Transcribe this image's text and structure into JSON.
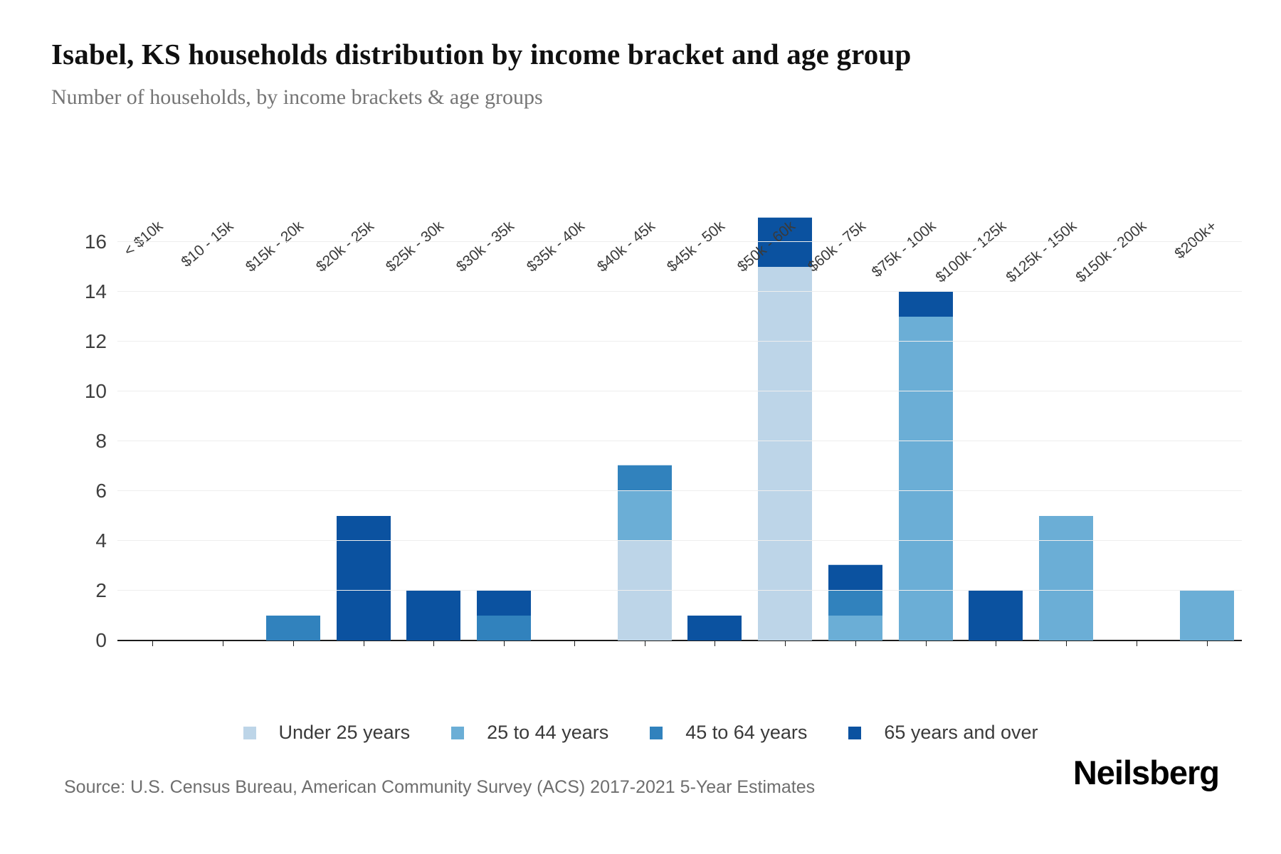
{
  "header": {
    "title": "Isabel, KS households distribution by income bracket and age group",
    "subtitle": "Number of households, by income brackets & age groups"
  },
  "footer": {
    "source": "Source: U.S. Census Bureau, American Community Survey (ACS) 2017-2021 5-Year Estimates",
    "brand": "Neilsberg"
  },
  "colors": {
    "under_25": "#bdd5e8",
    "25_to_44": "#6baed6",
    "45_to_64": "#3182bd",
    "65_and_over": "#0b52a0",
    "gridline": "#eeeeee",
    "axis": "#1c1c1c"
  },
  "chart_data": {
    "type": "bar",
    "stacked": true,
    "title": "Isabel, KS households distribution by income bracket and age group",
    "subtitle": "Number of households, by income brackets & age groups",
    "xlabel": "",
    "ylabel": "",
    "grid": true,
    "legend_position": "bottom",
    "ylim": [
      0,
      17.5
    ],
    "yticks": [
      0,
      2,
      4,
      6,
      8,
      10,
      12,
      14,
      16
    ],
    "categories": [
      "< $10k",
      "$10 - 15k",
      "$15k - 20k",
      "$20k - 25k",
      "$25k - 30k",
      "$30k - 35k",
      "$35k - 40k",
      "$40k - 45k",
      "$45k - 50k",
      "$50k - 60k",
      "$60k - 75k",
      "$75k - 100k",
      "$100k - 125k",
      "$125k - 150k",
      "$150k - 200k",
      "$200k+"
    ],
    "series": [
      {
        "name": "Under 25 years",
        "color": "#bdd5e8",
        "values": [
          0,
          0,
          0,
          0,
          0,
          0,
          0,
          4,
          0,
          15,
          0,
          0,
          0,
          0,
          0,
          0
        ]
      },
      {
        "name": "25 to 44 years",
        "color": "#6baed6",
        "values": [
          0,
          0,
          0,
          0,
          0,
          0,
          0,
          2,
          0,
          0,
          1,
          13,
          0,
          5,
          0,
          2
        ]
      },
      {
        "name": "45 to 64 years",
        "color": "#3182bd",
        "values": [
          0,
          0,
          1,
          0,
          0,
          1,
          0,
          1,
          0,
          0,
          1,
          0,
          0,
          0,
          0,
          0
        ]
      },
      {
        "name": "65 years and over",
        "color": "#0b52a0",
        "values": [
          0,
          0,
          0,
          5,
          2,
          1,
          0,
          0,
          1,
          2,
          1,
          1,
          2,
          0,
          0,
          0
        ]
      }
    ]
  }
}
